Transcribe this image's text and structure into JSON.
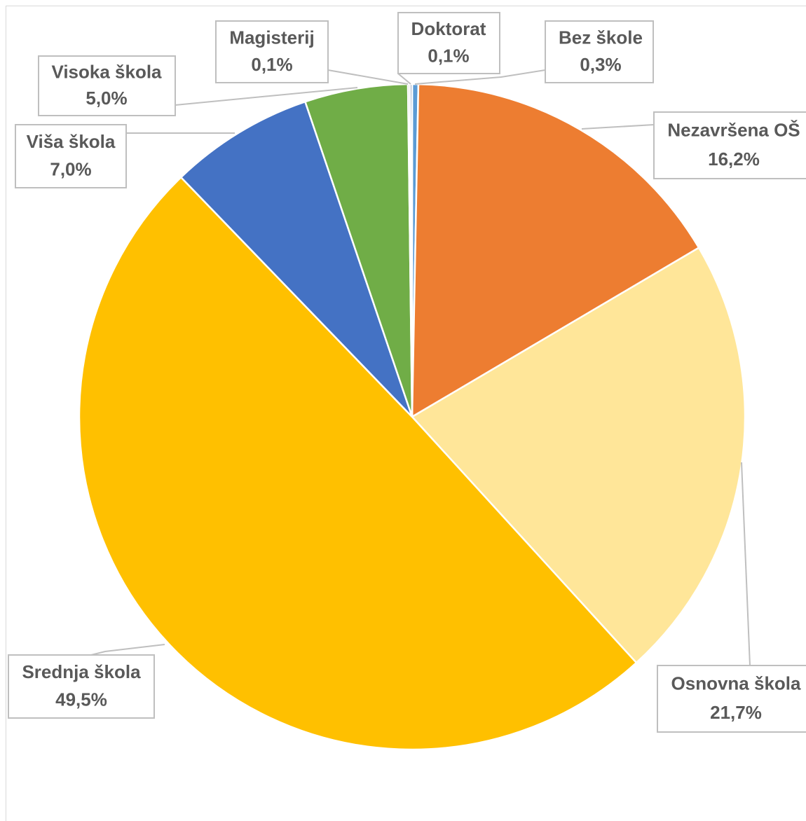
{
  "chart_data": {
    "type": "pie",
    "categories": [
      "Bez škole",
      "Nezavršena OŠ",
      "Osnovna škola",
      "Srednja škola",
      "Viša škola",
      "Visoka škola",
      "Magisterij",
      "Doktorat"
    ],
    "values": [
      0.3,
      16.2,
      21.7,
      49.5,
      7.0,
      5.0,
      0.1,
      0.1
    ],
    "value_labels": [
      "0,3%",
      "16,2%",
      "21,7%",
      "49,5%",
      "7,0%",
      "5,0%",
      "0,1%",
      "0,1%"
    ],
    "colors": [
      "#5b9bd5",
      "#ed7d31",
      "#ffe699",
      "#ffc000",
      "#4472c4",
      "#70ad47",
      "#a5a5a5",
      "#264478"
    ]
  }
}
